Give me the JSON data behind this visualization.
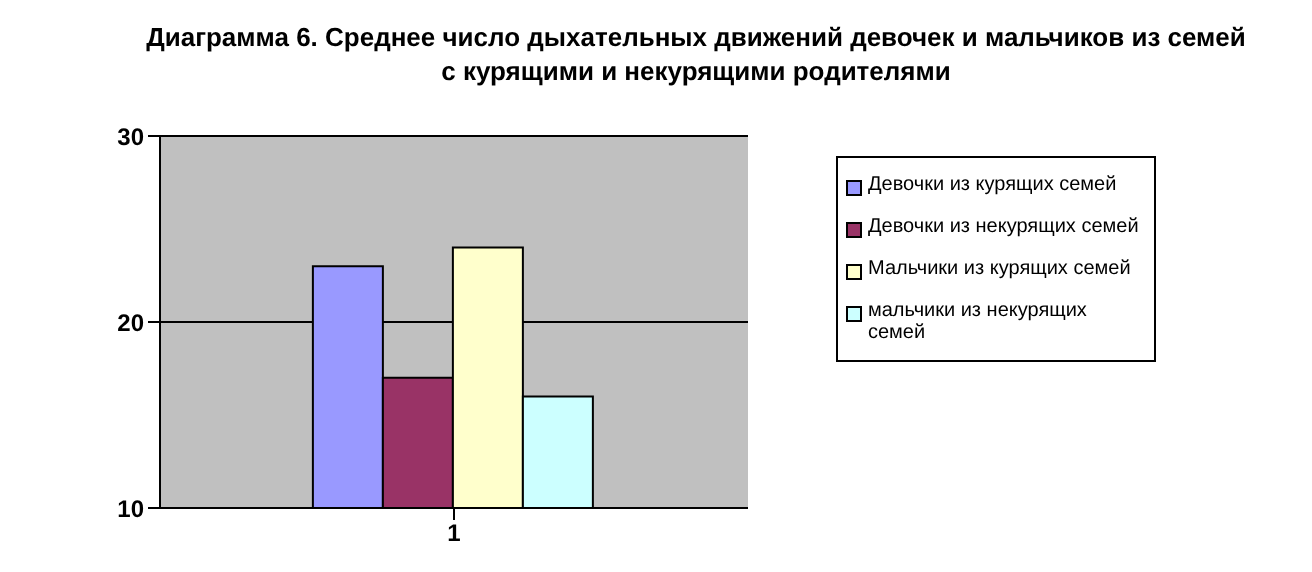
{
  "chart_data": {
    "type": "bar",
    "title": "Диаграмма 6. Среднее число  дыхательных движений девочек и мальчиков из семей с курящими и некурящими родителями",
    "categories": [
      "1"
    ],
    "series": [
      {
        "name": "Девочки из курящих семей",
        "color": "#9999ff",
        "values": [
          23
        ]
      },
      {
        "name": "Девочки из некурящих семей",
        "color": "#993366",
        "values": [
          17
        ]
      },
      {
        "name": "Мальчики из курящих семей",
        "color": "#ffffcc",
        "values": [
          24
        ]
      },
      {
        "name": "мальчики из некурящих семей",
        "color": "#ccffff",
        "values": [
          16
        ]
      }
    ],
    "ylim": [
      10,
      30
    ],
    "yticks": [
      10,
      20,
      30
    ],
    "grid": "y",
    "legend": "right"
  }
}
